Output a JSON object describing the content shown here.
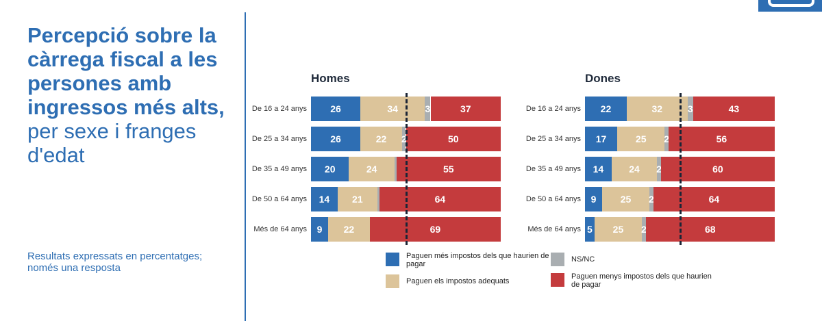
{
  "title": {
    "bold": "Percepció sobre la càrrega fiscal a les persones amb ingressos més alts,",
    "normal": " per sexe i franges d'edat"
  },
  "note": "Resultats expressats en percentatges; només una resposta",
  "colors": {
    "accent": "#2e6eb3",
    "more": "#2e6eb3",
    "adequate": "#dcc49a",
    "nsnc": "#a9aeb1",
    "less": "#c43b3d"
  },
  "chart_data": [
    {
      "type": "bar",
      "orientation": "horizontal-stacked",
      "title": "Homes",
      "categories": [
        "De 16 a 24 anys",
        "De 25 a 34 anys",
        "De 35 a 49 anys",
        "De 50 a 64 anys",
        "Més de 64 anys"
      ],
      "series": [
        {
          "name": "Paguen més impostos dels que haurien de pagar",
          "values": [
            26,
            26,
            20,
            14,
            9
          ]
        },
        {
          "name": "Paguen els impostos adequats",
          "values": [
            34,
            22,
            24,
            21,
            22
          ]
        },
        {
          "name": "NS/NC",
          "values": [
            3,
            2,
            1,
            1,
            0
          ]
        },
        {
          "name": "Paguen menys impostos dels que haurien de pagar",
          "values": [
            37,
            50,
            55,
            64,
            69
          ]
        }
      ],
      "labels_shown": [
        [
          "26",
          "34",
          "3",
          "37"
        ],
        [
          "26",
          "22",
          "2",
          "50"
        ],
        [
          "20",
          "24",
          "",
          "55"
        ],
        [
          "14",
          "21",
          "",
          "64"
        ],
        [
          "9",
          "22",
          "",
          "69"
        ]
      ],
      "reference_line": 50,
      "xlim": [
        0,
        100
      ]
    },
    {
      "type": "bar",
      "orientation": "horizontal-stacked",
      "title": "Dones",
      "categories": [
        "De 16 a 24 anys",
        "De 25 a 34 anys",
        "De 35 a 49 anys",
        "De 50 a 64 anys",
        "Més de 64 anys"
      ],
      "series": [
        {
          "name": "Paguen més impostos dels que haurien de pagar",
          "values": [
            22,
            17,
            14,
            9,
            5
          ]
        },
        {
          "name": "Paguen els impostos adequats",
          "values": [
            32,
            25,
            24,
            25,
            25
          ]
        },
        {
          "name": "NS/NC",
          "values": [
            3,
            2,
            2,
            2,
            2
          ]
        },
        {
          "name": "Paguen menys impostos dels que haurien de pagar",
          "values": [
            43,
            56,
            60,
            64,
            68
          ]
        }
      ],
      "labels_shown": [
        [
          "22",
          "32",
          "3",
          "43"
        ],
        [
          "17",
          "25",
          "2",
          "56"
        ],
        [
          "14",
          "24",
          "2",
          "60"
        ],
        [
          "9",
          "25",
          "2",
          "64"
        ],
        [
          "5",
          "25",
          "2",
          "68"
        ]
      ],
      "reference_line": 50,
      "xlim": [
        0,
        100
      ]
    }
  ],
  "legend": [
    {
      "label": "Paguen més impostos dels que haurien de pagar",
      "color_key": "more"
    },
    {
      "label": "NS/NC",
      "color_key": "nsnc"
    },
    {
      "label": "Paguen els impostos adequats",
      "color_key": "adequate"
    },
    {
      "label": "Paguen menys impostos dels que haurien de pagar",
      "color_key": "less"
    }
  ]
}
